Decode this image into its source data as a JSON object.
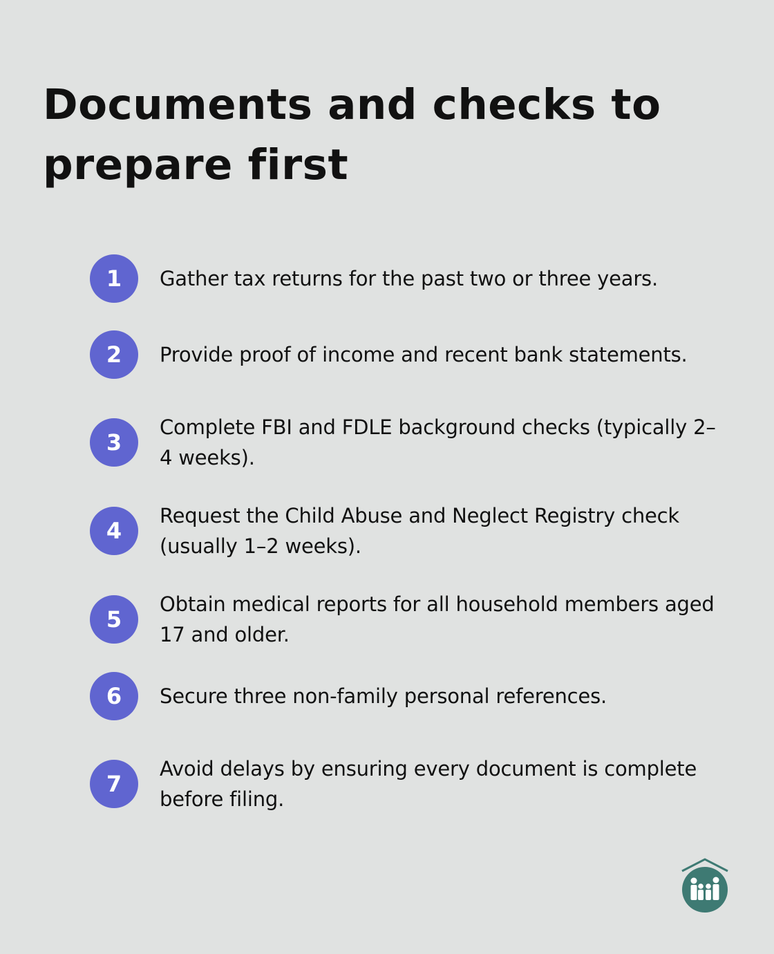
{
  "title": "Documents and checks to prepare first",
  "steps": [
    {
      "number": "1",
      "text": "Gather tax returns for the past two or three years."
    },
    {
      "number": "2",
      "text": "Provide proof of income and recent bank statements."
    },
    {
      "number": "3",
      "text": "Complete FBI and FDLE background checks (typically 2–4 weeks)."
    },
    {
      "number": "4",
      "text": "Request the Child Abuse and Neglect Registry check (usually 1–2 weeks)."
    },
    {
      "number": "5",
      "text": "Obtain medical reports for all household members aged 17 and older."
    },
    {
      "number": "6",
      "text": "Secure three non-family personal references."
    },
    {
      "number": "7",
      "text": "Avoid delays by ensuring every document is complete before filing."
    }
  ],
  "colors": {
    "background": "#e0e2e1",
    "accent": "#6065d0",
    "logo": "#3e7a73"
  },
  "logo_icon": "family-house-icon"
}
